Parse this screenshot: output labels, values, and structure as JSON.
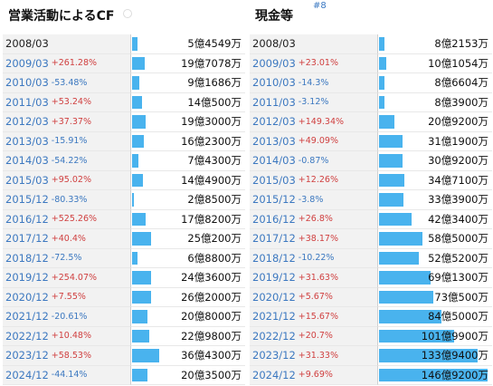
{
  "left": {
    "title": "営業活動によるCF",
    "rows": [
      {
        "year": "2008/03",
        "change": "",
        "value": "5億4549万",
        "fill": 0.051
      },
      {
        "year": "2009/03",
        "change": "+261.28%",
        "value": "19億7078万",
        "fill": 0.116
      },
      {
        "year": "2010/03",
        "change": "-53.48%",
        "value": "9億1686万",
        "fill": 0.063
      },
      {
        "year": "2011/03",
        "change": "+53.24%",
        "value": "14億500万",
        "fill": 0.089
      },
      {
        "year": "2012/03",
        "change": "+37.37%",
        "value": "19億3000万",
        "fill": 0.12
      },
      {
        "year": "2013/03",
        "change": "-15.91%",
        "value": "16億2300万",
        "fill": 0.108
      },
      {
        "year": "2014/03",
        "change": "-54.22%",
        "value": "7億4300万",
        "fill": 0.057
      },
      {
        "year": "2015/03",
        "change": "+95.02%",
        "value": "14億4900万",
        "fill": 0.095
      },
      {
        "year": "2015/12",
        "change": "-80.33%",
        "value": "2億8500万",
        "fill": 0.019
      },
      {
        "year": "2016/12",
        "change": "+525.26%",
        "value": "17億8200万",
        "fill": 0.12
      },
      {
        "year": "2017/12",
        "change": "+40.4%",
        "value": "25億200万",
        "fill": 0.171
      },
      {
        "year": "2018/12",
        "change": "-72.5%",
        "value": "6億8800万",
        "fill": 0.051
      },
      {
        "year": "2019/12",
        "change": "+254.07%",
        "value": "24億3600万",
        "fill": 0.171
      },
      {
        "year": "2020/12",
        "change": "+7.55%",
        "value": "26億2000万",
        "fill": 0.171
      },
      {
        "year": "2021/12",
        "change": "-20.61%",
        "value": "20億8000万",
        "fill": 0.139
      },
      {
        "year": "2022/12",
        "change": "+10.48%",
        "value": "22億9800万",
        "fill": 0.152
      },
      {
        "year": "2023/12",
        "change": "+58.53%",
        "value": "36億4300万",
        "fill": 0.241
      },
      {
        "year": "2024/12",
        "change": "-44.14%",
        "value": "20億3500万",
        "fill": 0.139
      }
    ]
  },
  "right": {
    "title": "現金等",
    "tag": "#8",
    "rows": [
      {
        "year": "2008/03",
        "change": "",
        "value": "8億2153万",
        "fill": 0.05
      },
      {
        "year": "2009/03",
        "change": "+23.01%",
        "value": "10億1054万",
        "fill": 0.063
      },
      {
        "year": "2010/03",
        "change": "-14.3%",
        "value": "8億6604万",
        "fill": 0.05
      },
      {
        "year": "2011/03",
        "change": "-3.12%",
        "value": "8億3900万",
        "fill": 0.05
      },
      {
        "year": "2012/03",
        "change": "+149.34%",
        "value": "20億9200万",
        "fill": 0.138
      },
      {
        "year": "2013/03",
        "change": "+49.09%",
        "value": "31億1900万",
        "fill": 0.207
      },
      {
        "year": "2014/03",
        "change": "-0.87%",
        "value": "30億9200万",
        "fill": 0.207
      },
      {
        "year": "2015/03",
        "change": "+12.26%",
        "value": "34億7100万",
        "fill": 0.226
      },
      {
        "year": "2015/12",
        "change": "-3.8%",
        "value": "33億3900万",
        "fill": 0.22
      },
      {
        "year": "2016/12",
        "change": "+26.8%",
        "value": "42億3400万",
        "fill": 0.289
      },
      {
        "year": "2017/12",
        "change": "+38.17%",
        "value": "58億5000万",
        "fill": 0.39
      },
      {
        "year": "2018/12",
        "change": "-10.22%",
        "value": "52億5200万",
        "fill": 0.352
      },
      {
        "year": "2019/12",
        "change": "+31.63%",
        "value": "69億1300万",
        "fill": 0.459
      },
      {
        "year": "2020/12",
        "change": "+5.67%",
        "value": "73億500万",
        "fill": 0.484
      },
      {
        "year": "2021/12",
        "change": "+15.67%",
        "value": "84億5000万",
        "fill": 0.56
      },
      {
        "year": "2022/12",
        "change": "+20.7%",
        "value": "101億9900万",
        "fill": 0.673
      },
      {
        "year": "2023/12",
        "change": "+31.33%",
        "value": "133億9400万",
        "fill": 0.881
      },
      {
        "year": "2024/12",
        "change": "+9.69%",
        "value": "146億9200万",
        "fill": 0.97
      }
    ]
  }
}
